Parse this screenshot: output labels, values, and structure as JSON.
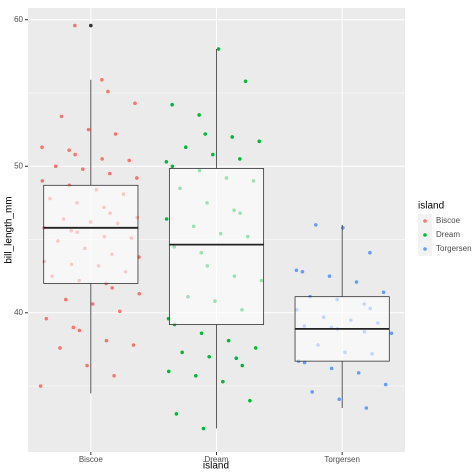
{
  "chart_data": {
    "type": "box",
    "x_label": "island",
    "y_label": "bill_length_mm",
    "categories": [
      "Biscoe",
      "Dream",
      "Torgersen"
    ],
    "ylim": [
      30.5,
      60.8
    ],
    "yticks": [
      40,
      50,
      60
    ],
    "grid": true,
    "legend_title": "island",
    "legend_position": "right",
    "series": [
      {
        "name": "Biscoe",
        "color": "#F8766D",
        "box": {
          "min": 34.5,
          "q1": 42.0,
          "median": 45.8,
          "q3": 48.7,
          "max": 55.9
        },
        "outliers": [
          59.6
        ],
        "points": [
          35.0,
          35.7,
          36.4,
          37.6,
          37.8,
          38.1,
          38.8,
          39.0,
          39.6,
          40.1,
          40.6,
          40.9,
          41.3,
          41.7,
          42.0,
          42.2,
          42.5,
          42.8,
          43.2,
          43.3,
          43.5,
          43.8,
          44.0,
          44.4,
          44.9,
          45.1,
          45.2,
          45.5,
          45.6,
          45.8,
          46.1,
          46.2,
          46.4,
          46.5,
          46.8,
          47.2,
          47.5,
          47.8,
          48.1,
          48.4,
          48.7,
          49.0,
          49.2,
          49.5,
          49.8,
          50.0,
          50.4,
          50.5,
          50.8,
          51.1,
          51.3,
          52.2,
          52.5,
          53.4,
          54.3,
          55.1,
          55.9,
          59.6
        ]
      },
      {
        "name": "Dream",
        "color": "#00BA38",
        "box": {
          "min": 32.1,
          "q1": 39.2,
          "median": 44.65,
          "q3": 49.85,
          "max": 58.0
        },
        "outliers": [],
        "points": [
          32.1,
          33.1,
          34.0,
          35.3,
          35.7,
          36.0,
          36.4,
          36.9,
          37.0,
          37.3,
          37.6,
          38.1,
          38.6,
          39.2,
          39.6,
          40.2,
          40.8,
          41.1,
          42.2,
          42.5,
          43.2,
          44.1,
          44.5,
          45.2,
          45.4,
          45.9,
          46.4,
          46.8,
          47.0,
          47.5,
          48.5,
          49.0,
          49.2,
          49.7,
          50.0,
          50.3,
          50.5,
          50.8,
          51.3,
          51.7,
          52.0,
          52.2,
          53.5,
          54.2,
          55.8,
          58.0
        ]
      },
      {
        "name": "Torgersen",
        "color": "#619CFF",
        "box": {
          "min": 33.5,
          "q1": 36.7,
          "median": 38.9,
          "q3": 41.1,
          "max": 46.0
        },
        "outliers": [],
        "points": [
          33.5,
          34.1,
          34.6,
          35.1,
          35.9,
          36.2,
          36.6,
          36.7,
          37.2,
          37.3,
          37.8,
          38.6,
          38.7,
          38.9,
          39.0,
          39.1,
          39.3,
          39.5,
          39.7,
          40.2,
          40.3,
          40.6,
          40.9,
          41.1,
          41.4,
          42.1,
          42.5,
          42.8,
          42.9,
          44.1,
          45.8,
          46.0
        ]
      }
    ]
  }
}
